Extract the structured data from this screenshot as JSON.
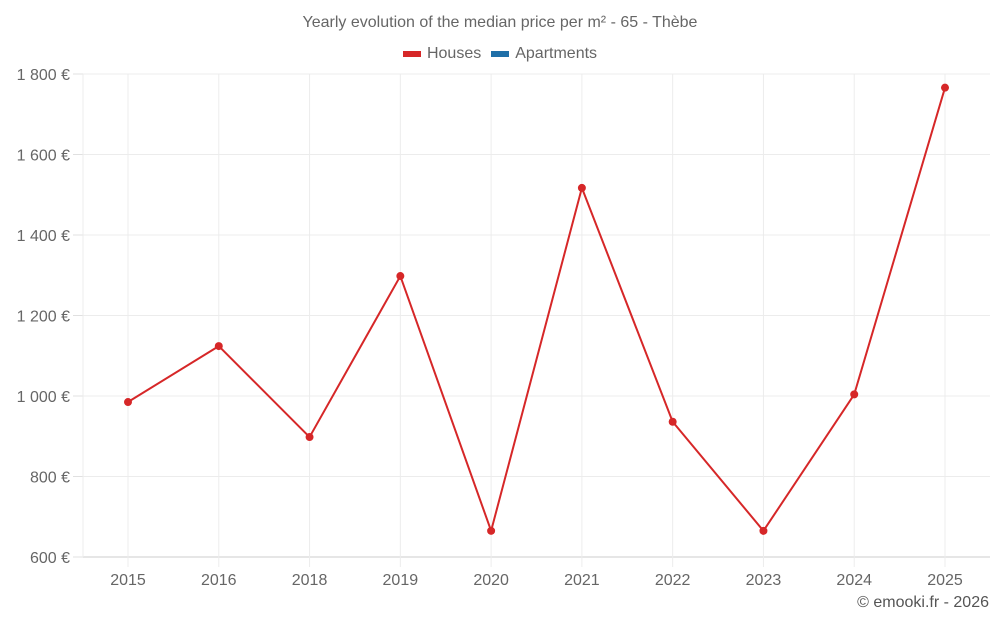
{
  "header": {
    "title": "Yearly evolution of the median price per m² - 65 - Thèbe"
  },
  "legend": [
    {
      "label": "Houses",
      "color": "#d62728"
    },
    {
      "label": "Apartments",
      "color": "#1f6fa8"
    }
  ],
  "footer": {
    "credit": "© emooki.fr - 2026"
  },
  "chart_data": {
    "type": "line",
    "title": "Yearly evolution of the median price per m² - 65 - Thèbe",
    "xlabel": "",
    "ylabel": "",
    "categories": [
      "2015",
      "2016",
      "2018",
      "2019",
      "2020",
      "2021",
      "2022",
      "2023",
      "2024",
      "2025"
    ],
    "series": [
      {
        "name": "Houses",
        "color": "#d62728",
        "values": [
          985,
          1124,
          898,
          1298,
          665,
          1517,
          936,
          665,
          1004,
          1766
        ]
      },
      {
        "name": "Apartments",
        "color": "#1f6fa8",
        "values": []
      }
    ],
    "ylim": [
      600,
      1800
    ],
    "yticks": [
      600,
      800,
      1000,
      1200,
      1400,
      1600,
      1800
    ],
    "ytick_labels": [
      "600 €",
      "800 €",
      "1 000 €",
      "1 200 €",
      "1 400 €",
      "1 600 €",
      "1 800 €"
    ],
    "grid": true,
    "legend_position": "top"
  }
}
